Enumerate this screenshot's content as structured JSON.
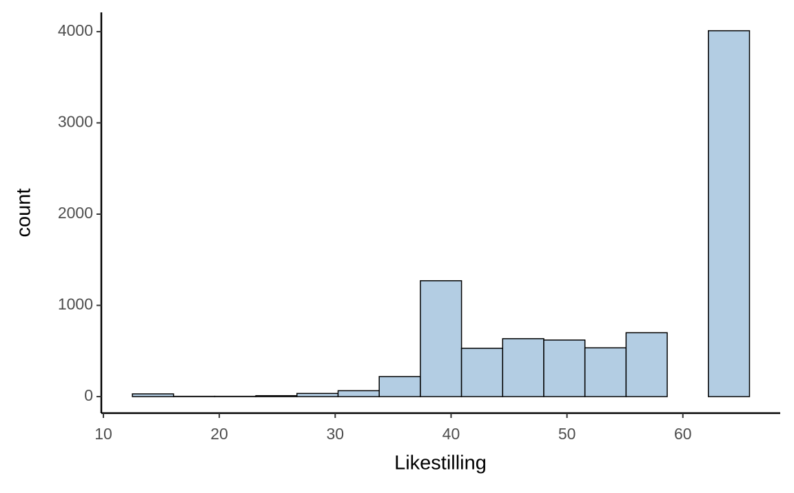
{
  "chart_data": {
    "type": "histogram",
    "x_label": "Likestilling",
    "y_label": "count",
    "bins": [
      12.5,
      16.05,
      19.6,
      23.15,
      26.7,
      30.25,
      33.8,
      37.35,
      40.9,
      44.45,
      48.0,
      51.55,
      55.1,
      58.65,
      62.2,
      65.75
    ],
    "values": [
      30,
      3,
      3,
      10,
      35,
      65,
      220,
      1270,
      530,
      635,
      620,
      535,
      700,
      0,
      4010
    ],
    "color": "#b3cde3",
    "edge_color": "#000000",
    "xlim": [
      9.82,
      68.4
    ],
    "ylim": [
      -181,
      4211
    ],
    "xticks": [
      10,
      20,
      30,
      40,
      50,
      60
    ],
    "yticks": [
      0,
      1000,
      2000,
      3000,
      4000
    ]
  }
}
